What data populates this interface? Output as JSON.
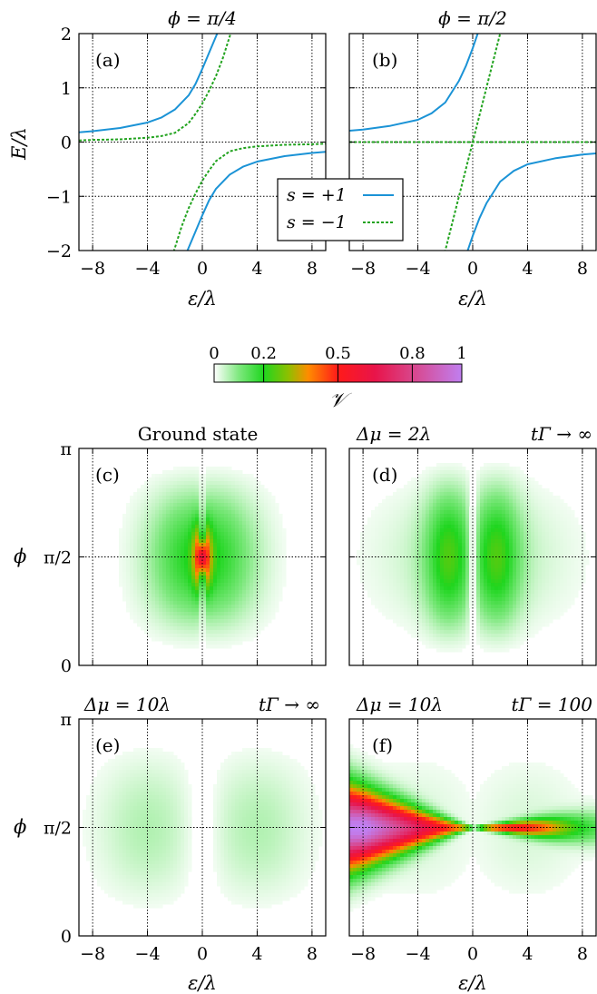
{
  "colors": {
    "s_plus": "#1b93d6",
    "s_minus": "#22a31f",
    "grid": "#000000"
  },
  "chart_data": [
    {
      "id": "a",
      "type": "line",
      "panel_label": "(a)",
      "title": "ϕ = π/4",
      "xlabel": "ε/λ",
      "ylabel": "E/λ",
      "xlim": [
        -9,
        9
      ],
      "ylim": [
        -2,
        2
      ],
      "xticks": [
        -8,
        -4,
        0,
        4,
        8
      ],
      "xtick_labels": [
        "−8",
        "−4",
        "0",
        "4",
        "8"
      ],
      "yticks": [
        -2,
        -1,
        0,
        1,
        2
      ],
      "ytick_labels": [
        "−2",
        "−1",
        "0",
        "1",
        "2"
      ],
      "grid": true,
      "phi": 0.7854,
      "x_samples": [
        -9,
        -8,
        -6,
        -4,
        -3,
        -2,
        -1.5,
        -1,
        -0.5,
        0,
        0.5,
        1,
        1.5,
        2,
        3,
        4,
        6,
        8,
        9
      ],
      "series": [
        {
          "name": "s = +1",
          "style": "solid",
          "branches": [
            {
              "x": [
                -9,
                -8,
                -6,
                -4,
                -3,
                -2,
                -1,
                -0.5,
                0,
                0.5,
                1,
                1.25,
                1.5
              ],
              "y": [
                0.18,
                0.2,
                0.26,
                0.36,
                0.45,
                0.6,
                0.86,
                1.07,
                1.35,
                1.65,
                1.95,
                2.1,
                2.25
              ]
            },
            {
              "x": [
                -1.5,
                -1.25,
                -1,
                -0.5,
                0,
                0.5,
                1,
                2,
                3,
                4,
                6,
                8,
                9
              ],
              "y": [
                -2.25,
                -2.1,
                -1.95,
                -1.65,
                -1.35,
                -1.07,
                -0.86,
                -0.6,
                -0.45,
                -0.36,
                -0.26,
                -0.2,
                -0.18
              ]
            }
          ]
        },
        {
          "name": "s = −1",
          "style": "dashed",
          "branches": [
            {
              "x": [
                -9,
                -8,
                -6,
                -4,
                -3,
                -2,
                -1,
                -0.5,
                0,
                0.5,
                1,
                1.5,
                2,
                2.2
              ],
              "y": [
                0.03,
                0.04,
                0.05,
                0.08,
                0.11,
                0.17,
                0.35,
                0.52,
                0.71,
                0.95,
                1.22,
                1.55,
                1.95,
                2.1
              ]
            },
            {
              "x": [
                -2.2,
                -2,
                -1.5,
                -1,
                -0.5,
                0,
                0.5,
                1,
                2,
                3,
                4,
                6,
                8,
                9
              ],
              "y": [
                -2.1,
                -1.95,
                -1.55,
                -1.22,
                -0.95,
                -0.71,
                -0.52,
                -0.35,
                -0.17,
                -0.11,
                -0.08,
                -0.05,
                -0.04,
                -0.03
              ]
            }
          ]
        }
      ]
    },
    {
      "id": "b",
      "type": "line",
      "panel_label": "(b)",
      "title": "ϕ = π/2",
      "xlabel": "ε/λ",
      "xlim": [
        -9,
        9
      ],
      "ylim": [
        -2,
        2
      ],
      "xticks": [
        -8,
        -4,
        0,
        4,
        8
      ],
      "xtick_labels": [
        "−8",
        "−4",
        "0",
        "4",
        "8"
      ],
      "yticks": [
        -2,
        -1,
        0,
        1,
        2
      ],
      "grid": true,
      "phi": 1.5708,
      "series": [
        {
          "name": "s = +1",
          "style": "solid",
          "branches": [
            {
              "x": [
                -9,
                -8,
                -6,
                -4,
                -3,
                -2,
                -1,
                -0.5,
                0,
                0.5,
                1,
                1.25
              ],
              "y": [
                0.21,
                0.23,
                0.3,
                0.41,
                0.53,
                0.73,
                1.13,
                1.4,
                1.73,
                2.1,
                2.5,
                2.7
              ]
            },
            {
              "x": [
                -1.25,
                -1,
                -0.5,
                0,
                0.5,
                1,
                2,
                3,
                4,
                6,
                8,
                9
              ],
              "y": [
                -2.7,
                -2.5,
                -2.1,
                -1.73,
                -1.4,
                -1.13,
                -0.73,
                -0.53,
                -0.41,
                -0.3,
                -0.23,
                -0.21
              ]
            }
          ]
        },
        {
          "name": "s = −1",
          "style": "dashed",
          "branches": [
            {
              "x": [
                -9,
                9
              ],
              "y": [
                0,
                0
              ]
            },
            {
              "x": [
                -2.2,
                2.2
              ],
              "y": [
                -2.2,
                2.2
              ]
            }
          ]
        }
      ]
    },
    {
      "id": "colorbar",
      "type": "heatmap",
      "title": "𝒱",
      "clim": [
        0,
        1
      ],
      "ticks": [
        0,
        0.2,
        0.5,
        0.8,
        1
      ],
      "tick_labels": [
        "0",
        "0.2",
        "0.5",
        "0.8",
        "1"
      ],
      "colormap": [
        {
          "v": 0.0,
          "color": "#ffffff"
        },
        {
          "v": 0.1,
          "color": "#7ee87e"
        },
        {
          "v": 0.2,
          "color": "#1fd61f"
        },
        {
          "v": 0.3,
          "color": "#8fbf00"
        },
        {
          "v": 0.38,
          "color": "#ff8c00"
        },
        {
          "v": 0.5,
          "color": "#ff1a1a"
        },
        {
          "v": 0.65,
          "color": "#e8144a"
        },
        {
          "v": 0.8,
          "color": "#d9458a"
        },
        {
          "v": 1.0,
          "color": "#c07ff0"
        }
      ]
    },
    {
      "id": "c",
      "type": "heatmap",
      "panel_label": "(c)",
      "title": "Ground state",
      "xlabel": "",
      "ylabel": "ϕ",
      "xlim": [
        -9,
        9
      ],
      "ylim": [
        0,
        3.1416
      ],
      "yticks": [
        0,
        1.5708,
        3.1416
      ],
      "ytick_labels": [
        "0",
        "π/2",
        "π"
      ],
      "xticks": [
        -8,
        -4,
        0,
        4,
        8
      ],
      "grid": true,
      "peak": 0.42,
      "description_model": "lobes"
    },
    {
      "id": "d",
      "type": "heatmap",
      "panel_label": "(d)",
      "title_left": "Δμ = 2λ",
      "title_right": "tΓ → ∞",
      "xlim": [
        -9,
        9
      ],
      "ylim": [
        0,
        3.1416
      ],
      "xticks": [
        -8,
        -4,
        0,
        4,
        8
      ],
      "yticks": [
        0,
        1.5708,
        3.1416
      ],
      "grid": true,
      "peak": 0.2
    },
    {
      "id": "e",
      "type": "heatmap",
      "panel_label": "(e)",
      "title_left": "Δμ = 10λ",
      "title_right": "tΓ → ∞",
      "xlabel": "ε/λ",
      "ylabel": "ϕ",
      "xlim": [
        -9,
        9
      ],
      "ylim": [
        0,
        3.1416
      ],
      "xticks": [
        -8,
        -4,
        0,
        4,
        8
      ],
      "xtick_labels": [
        "−8",
        "−4",
        "0",
        "4",
        "8"
      ],
      "yticks": [
        0,
        1.5708,
        3.1416
      ],
      "ytick_labels": [
        "0",
        "π/2",
        "π"
      ],
      "grid": true,
      "peak": 0.06
    },
    {
      "id": "f",
      "type": "heatmap",
      "panel_label": "(f)",
      "title_left": "Δμ = 10λ",
      "title_right": "tΓ = 100",
      "xlabel": "ε/λ",
      "xlim": [
        -9,
        9
      ],
      "ylim": [
        0,
        3.1416
      ],
      "xticks": [
        -8,
        -4,
        0,
        4,
        8
      ],
      "xtick_labels": [
        "−8",
        "−4",
        "0",
        "4",
        "8"
      ],
      "yticks": [
        0,
        1.5708,
        3.1416
      ],
      "grid": true,
      "peak": 1.0
    }
  ],
  "legend": {
    "entries": [
      {
        "label": "s = +1",
        "series": "s_plus",
        "style": "solid"
      },
      {
        "label": "s = −1",
        "series": "s_minus",
        "style": "dashed"
      }
    ],
    "placement": "center-bottom"
  }
}
